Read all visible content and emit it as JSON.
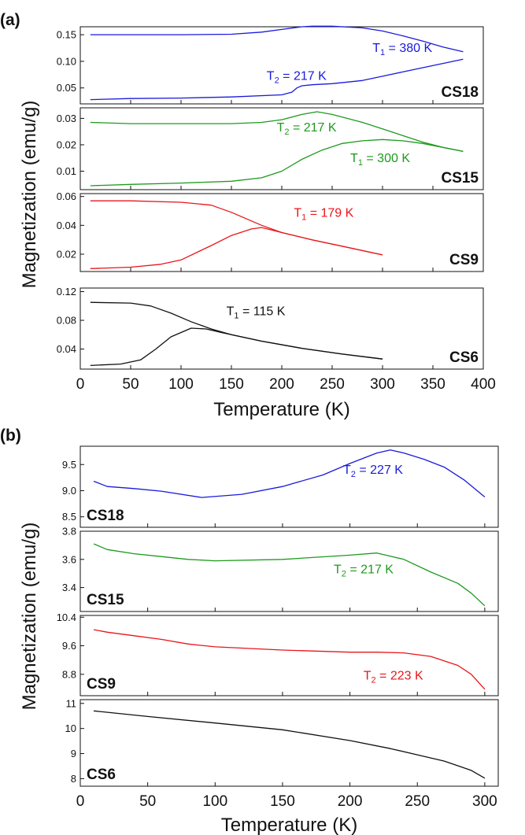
{
  "chart_data": [
    {
      "panel_label": "(a)",
      "type": "line",
      "xlabel": "Temperature (K)",
      "ylabel": "Magnetization (emu/g)",
      "xlim": [
        0,
        400
      ],
      "xticks": [
        0,
        50,
        100,
        150,
        200,
        250,
        300,
        350,
        400
      ],
      "subplots": [
        {
          "sample": "CS18",
          "color": "#1a1adb",
          "ylim": [
            0.02,
            0.165
          ],
          "yticks": [
            0.05,
            0.1,
            0.15
          ],
          "ytick_labels": [
            "0.05",
            "0.10",
            "0.15"
          ],
          "series": [
            {
              "x": [
                10,
                50,
                100,
                150,
                180,
                200,
                220,
                230,
                250,
                280,
                300,
                320,
                340,
                360,
                380
              ],
              "y": [
                0.15,
                0.15,
                0.15,
                0.151,
                0.155,
                0.16,
                0.165,
                0.166,
                0.166,
                0.163,
                0.157,
                0.148,
                0.138,
                0.127,
                0.118
              ]
            },
            {
              "x": [
                10,
                50,
                100,
                150,
                200,
                210,
                215,
                220,
                230,
                250,
                280,
                300,
                320,
                340,
                360,
                380
              ],
              "y": [
                0.028,
                0.03,
                0.031,
                0.033,
                0.037,
                0.042,
                0.05,
                0.054,
                0.056,
                0.058,
                0.064,
                0.072,
                0.08,
                0.088,
                0.096,
                0.104
              ]
            }
          ],
          "annotations": [
            {
              "text": "T",
              "sub": "1",
              "rest": " = 380 K",
              "x": 290,
              "y": 0.118
            },
            {
              "text": "T",
              "sub": "2",
              "rest": " = 217 K",
              "x": 185,
              "y": 0.065
            }
          ]
        },
        {
          "sample": "CS15",
          "color": "#1e9a1e",
          "ylim": [
            0.003,
            0.034
          ],
          "yticks": [
            0.01,
            0.02,
            0.03
          ],
          "ytick_labels": [
            "0.01",
            "0.02",
            "0.03"
          ],
          "series": [
            {
              "x": [
                10,
                50,
                100,
                150,
                180,
                200,
                220,
                235,
                250,
                280,
                300,
                320,
                340,
                360,
                380
              ],
              "y": [
                0.0285,
                0.028,
                0.028,
                0.028,
                0.0285,
                0.0295,
                0.0315,
                0.0325,
                0.0315,
                0.0285,
                0.026,
                0.0235,
                0.021,
                0.019,
                0.0175
              ]
            },
            {
              "x": [
                10,
                50,
                100,
                150,
                180,
                200,
                220,
                240,
                260,
                280,
                300,
                320,
                340,
                360,
                380
              ],
              "y": [
                0.0045,
                0.005,
                0.0055,
                0.0062,
                0.0075,
                0.01,
                0.0145,
                0.018,
                0.0205,
                0.0215,
                0.022,
                0.0215,
                0.0205,
                0.019,
                0.0175
              ]
            }
          ],
          "annotations": [
            {
              "text": "T",
              "sub": "2",
              "rest": " = 217 K",
              "x": 195,
              "y": 0.025
            },
            {
              "text": "T",
              "sub": "1",
              "rest": " = 300 K",
              "x": 268,
              "y": 0.0135
            }
          ]
        },
        {
          "sample": "CS9",
          "color": "#e8161a",
          "ylim": [
            0.008,
            0.062
          ],
          "yticks": [
            0.02,
            0.04,
            0.06
          ],
          "ytick_labels": [
            "0.02",
            "0.04",
            "0.06"
          ],
          "series": [
            {
              "x": [
                10,
                50,
                100,
                130,
                150,
                170,
                180,
                200,
                230,
                260,
                300
              ],
              "y": [
                0.057,
                0.057,
                0.056,
                0.054,
                0.049,
                0.043,
                0.04,
                0.035,
                0.03,
                0.0255,
                0.0195
              ]
            },
            {
              "x": [
                10,
                50,
                80,
                100,
                130,
                150,
                170,
                180,
                200,
                230,
                260,
                300
              ],
              "y": [
                0.01,
                0.011,
                0.013,
                0.016,
                0.026,
                0.033,
                0.0375,
                0.0385,
                0.035,
                0.03,
                0.0255,
                0.0195
              ]
            }
          ],
          "annotations": [
            {
              "text": "T",
              "sub": "1",
              "rest": " = 179 K",
              "x": 212,
              "y": 0.046
            }
          ]
        },
        {
          "sample": "CS6",
          "color": "#111111",
          "ylim": [
            0.012,
            0.125
          ],
          "yticks": [
            0.04,
            0.08,
            0.12
          ],
          "ytick_labels": [
            "0.04",
            "0.08",
            "0.12"
          ],
          "series": [
            {
              "x": [
                10,
                50,
                70,
                90,
                110,
                130,
                150,
                180,
                220,
                260,
                300
              ],
              "y": [
                0.105,
                0.104,
                0.1,
                0.09,
                0.078,
                0.068,
                0.06,
                0.051,
                0.041,
                0.033,
                0.026
              ]
            },
            {
              "x": [
                10,
                40,
                60,
                75,
                90,
                110,
                125,
                140,
                160,
                180,
                220,
                260,
                300
              ],
              "y": [
                0.017,
                0.019,
                0.025,
                0.04,
                0.057,
                0.069,
                0.068,
                0.063,
                0.057,
                0.051,
                0.041,
                0.033,
                0.026
              ]
            }
          ],
          "annotations": [
            {
              "text": "T",
              "sub": "1",
              "rest": " = 115 K",
              "x": 145,
              "y": 0.087
            }
          ]
        }
      ]
    },
    {
      "panel_label": "(b)",
      "type": "line",
      "xlabel": "Temperature (K)",
      "ylabel": "Magnetization (emu/g)",
      "xlim": [
        0,
        310
      ],
      "xticks": [
        0,
        50,
        100,
        150,
        200,
        250,
        300
      ],
      "subplots": [
        {
          "sample": "CS18",
          "color": "#1a1adb",
          "ylim": [
            8.3,
            9.85
          ],
          "yticks": [
            8.5,
            9.0,
            9.5
          ],
          "ytick_labels": [
            "8.5",
            "9.0",
            "9.5"
          ],
          "series": [
            {
              "x": [
                10,
                20,
                40,
                60,
                90,
                120,
                150,
                180,
                200,
                220,
                230,
                240,
                255,
                270,
                285,
                300
              ],
              "y": [
                9.18,
                9.08,
                9.04,
                8.99,
                8.87,
                8.93,
                9.08,
                9.3,
                9.52,
                9.72,
                9.78,
                9.72,
                9.6,
                9.45,
                9.2,
                8.88
              ]
            }
          ],
          "annotations": [
            {
              "text": "T",
              "sub": "2",
              "rest": " = 227 K",
              "x": 195,
              "y": 9.32
            }
          ]
        },
        {
          "sample": "CS15",
          "color": "#1e9a1e",
          "ylim": [
            3.23,
            3.8
          ],
          "yticks": [
            3.4,
            3.6,
            3.8
          ],
          "ytick_labels": [
            "3.4",
            "3.6",
            "3.8"
          ],
          "series": [
            {
              "x": [
                10,
                20,
                40,
                60,
                80,
                100,
                150,
                200,
                220,
                240,
                260,
                280,
                290,
                300
              ],
              "y": [
                3.71,
                3.67,
                3.64,
                3.62,
                3.6,
                3.59,
                3.6,
                3.63,
                3.645,
                3.6,
                3.51,
                3.43,
                3.36,
                3.27
              ]
            }
          ],
          "annotations": [
            {
              "text": "T",
              "sub": "2",
              "rest": " = 217 K",
              "x": 188,
              "y": 3.5
            }
          ]
        },
        {
          "sample": "CS9",
          "color": "#e8161a",
          "ylim": [
            8.2,
            10.45
          ],
          "yticks": [
            8.8,
            9.6,
            10.4
          ],
          "ytick_labels": [
            "8.8",
            "9.6",
            "10.4"
          ],
          "series": [
            {
              "x": [
                10,
                20,
                40,
                60,
                80,
                100,
                150,
                200,
                220,
                240,
                260,
                280,
                290,
                300
              ],
              "y": [
                10.05,
                9.98,
                9.88,
                9.78,
                9.65,
                9.57,
                9.48,
                9.42,
                9.42,
                9.4,
                9.3,
                9.05,
                8.8,
                8.38
              ]
            }
          ],
          "annotations": [
            {
              "text": "T",
              "sub": "2",
              "rest": " = 223 K",
              "x": 210,
              "y": 8.65
            }
          ]
        },
        {
          "sample": "CS6",
          "color": "#111111",
          "ylim": [
            7.7,
            11.15
          ],
          "yticks": [
            8,
            9,
            10,
            11
          ],
          "ytick_labels": [
            "8",
            "9",
            "10",
            "11"
          ],
          "series": [
            {
              "x": [
                10,
                50,
                100,
                150,
                200,
                230,
                250,
                270,
                290,
                300
              ],
              "y": [
                10.7,
                10.48,
                10.22,
                9.95,
                9.52,
                9.2,
                8.95,
                8.7,
                8.33,
                8.02
              ]
            }
          ],
          "annotations": []
        }
      ]
    }
  ]
}
